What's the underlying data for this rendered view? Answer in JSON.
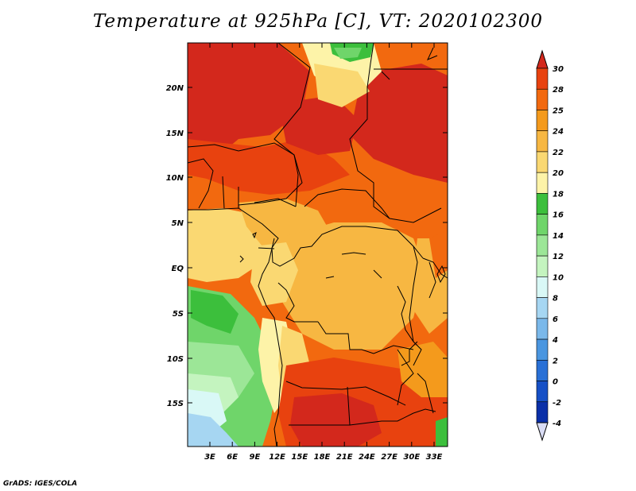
{
  "title": "Temperature at 925hPa [C], VT: 2020102300",
  "footer": "GrADS: IGES/COLA",
  "axes": {
    "y_labels": [
      "20N",
      "15N",
      "10N",
      "5N",
      "EQ",
      "5S",
      "10S",
      "15S"
    ],
    "x_labels": [
      "3E",
      "6E",
      "9E",
      "12E",
      "15E",
      "18E",
      "21E",
      "24E",
      "27E",
      "30E",
      "33E"
    ]
  },
  "colorbar": {
    "labels": [
      "30",
      "28",
      "25",
      "24",
      "22",
      "20",
      "18",
      "16",
      "14",
      "12",
      "10",
      "8",
      "6",
      "4",
      "2",
      "0",
      "-2",
      "-4"
    ],
    "colors": [
      "#d3281c",
      "#e8420f",
      "#f2690f",
      "#f49a1c",
      "#f7b742",
      "#fad872",
      "#fdf3a8",
      "#3cbf3c",
      "#6fd56a",
      "#9ce697",
      "#c4f4bf",
      "#d9f8f6",
      "#a6d6f2",
      "#7ab8ea",
      "#4a96e0",
      "#2970d6",
      "#1650c6",
      "#0a2fa8",
      "#081b6e"
    ]
  },
  "regions": {
    "hot_north": "#d3281c",
    "warm_north": "#e8420f",
    "orange": "#f2690f",
    "light_orange": "#f49a1c",
    "basin": "#f7b742",
    "pale": "#fad872",
    "cream": "#fdf3a8",
    "green": "#3cbf3c",
    "light_green": "#6fd56a",
    "pale_green": "#9ce697",
    "mint": "#c4f4bf",
    "cyan": "#d9f8f6",
    "blue": "#a6d6f2"
  }
}
